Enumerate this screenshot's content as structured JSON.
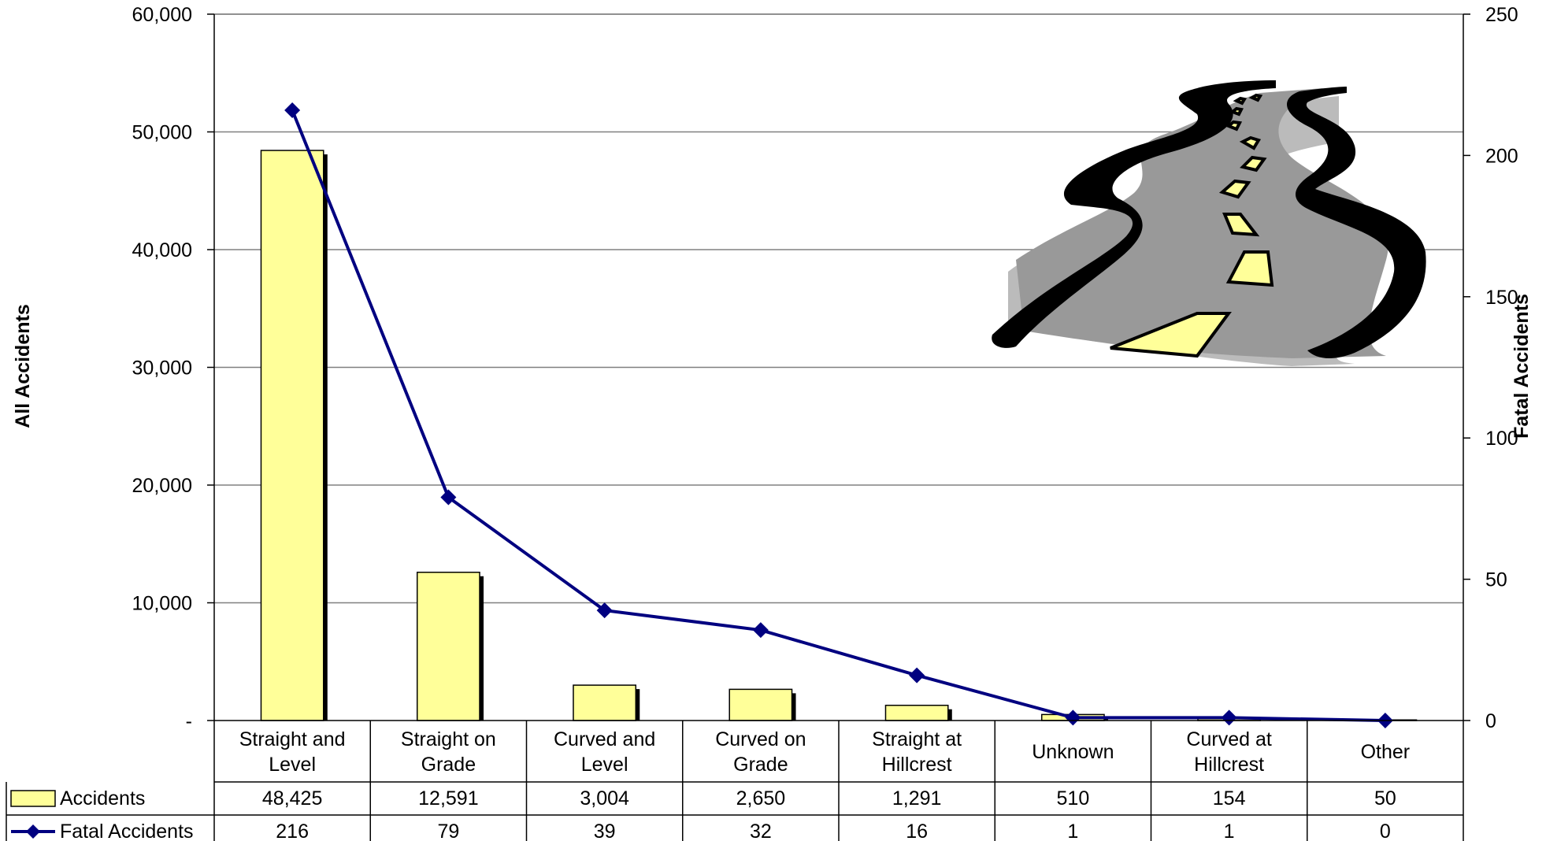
{
  "chart_data": {
    "type": "bar",
    "categories": [
      [
        "Straight and",
        "Level"
      ],
      [
        "Straight on",
        "Grade"
      ],
      [
        "Curved and",
        "Level"
      ],
      [
        "Curved on",
        "Grade"
      ],
      [
        "Straight at",
        "Hillcrest"
      ],
      [
        "Unknown"
      ],
      [
        "Curved at",
        "Hillcrest"
      ],
      [
        "Other"
      ]
    ],
    "series": [
      {
        "name": "Accidents",
        "type": "bar",
        "axis": "left",
        "values": [
          48425,
          12591,
          3004,
          2650,
          1291,
          510,
          154,
          50
        ],
        "labels": [
          "48,425",
          "12,591",
          "3,004",
          "2,650",
          "1,291",
          "510",
          "154",
          "50"
        ],
        "color": "#FFFF99"
      },
      {
        "name": "Fatal Accidents",
        "type": "line",
        "axis": "right",
        "values": [
          216,
          79,
          39,
          32,
          16,
          1,
          1,
          0
        ],
        "labels": [
          "216",
          "79",
          "39",
          "32",
          "16",
          "1",
          "1",
          "0"
        ],
        "color": "#000080"
      }
    ],
    "ylabel": "All Accidents",
    "y2label": "Fatal Accidents",
    "ylim": [
      0,
      60000
    ],
    "y2lim": [
      0,
      250
    ],
    "yticks": [
      0,
      10000,
      20000,
      30000,
      40000,
      50000,
      60000
    ],
    "ytick_labels": [
      "-",
      "10,000",
      "20,000",
      "30,000",
      "40,000",
      "50,000",
      "60,000"
    ],
    "y2ticks": [
      0,
      50,
      100,
      150,
      200,
      250
    ],
    "y2tick_labels": [
      "0",
      "50",
      "100",
      "150",
      "200",
      "250"
    ],
    "grid": true,
    "data_table": true,
    "decoration": "road-clipart"
  }
}
